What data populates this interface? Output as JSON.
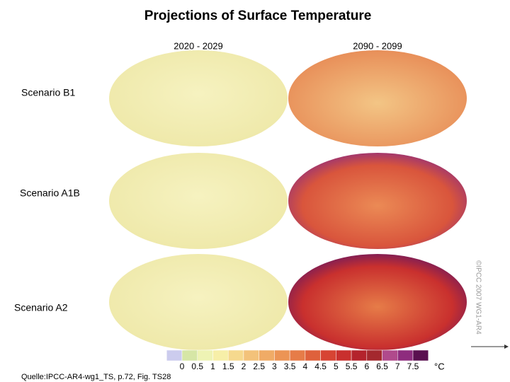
{
  "title": "Projections of Surface Temperature",
  "columns": [
    "2020 - 2029",
    "2090 - 2099"
  ],
  "rows": [
    "Scenario B1",
    "Scenario A1B",
    "Scenario A2"
  ],
  "colorbar": {
    "ticks": [
      0,
      0.5,
      1,
      1.5,
      2,
      2.5,
      3,
      3.5,
      4,
      4.5,
      5,
      5.5,
      6,
      6.5,
      7,
      7.5
    ],
    "unit": "°C",
    "colors": [
      "#ccccee",
      "#d6e6a6",
      "#eef3b4",
      "#f7efa8",
      "#f6d98e",
      "#f3c27a",
      "#f0ab66",
      "#ec9455",
      "#e67c48",
      "#df613c",
      "#d74433",
      "#c9302e",
      "#b4232c",
      "#a4282e",
      "#b04a8c",
      "#8e2c7e",
      "#5a1050"
    ]
  },
  "source": "Quelle:IPCC-AR4-wg1_TS, p.72, Fig. TS28",
  "watermark": "©IPCC 2007 WG1-AR4"
}
